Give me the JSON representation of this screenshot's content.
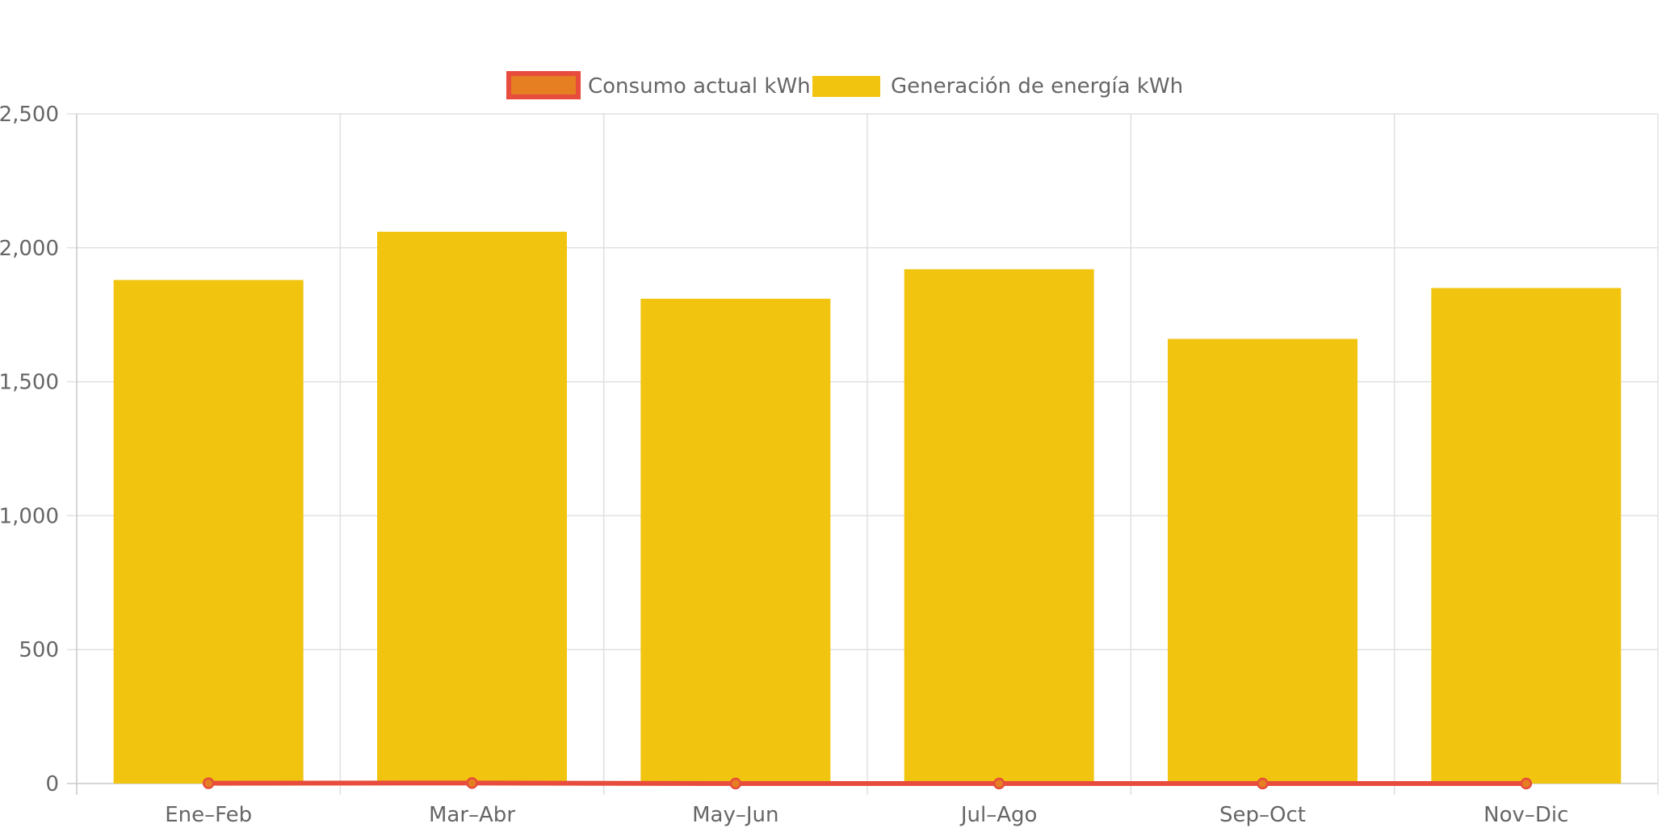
{
  "chart_data": {
    "type": "bar",
    "title": "",
    "xlabel": "",
    "ylabel": "",
    "categories": [
      "Ene–Feb",
      "Mar–Abr",
      "May–Jun",
      "Jul–Ago",
      "Sep–Oct",
      "Nov–Dic"
    ],
    "ylim": [
      0,
      2500
    ],
    "yticks": [
      0,
      500,
      1000,
      1500,
      2000,
      2500
    ],
    "ytick_labels": [
      "0",
      "500",
      "1,000",
      "1,500",
      "2,000",
      "2,500"
    ],
    "grid": true,
    "legend_position": "top-center",
    "series": [
      {
        "name": "Consumo actual kWh",
        "type": "line",
        "values": [
          1,
          2,
          0,
          0,
          0,
          0
        ],
        "color": "#e74c3c",
        "fill_color": "#e67e22"
      },
      {
        "name": "Generación de energía kWh",
        "type": "bar",
        "values": [
          1880,
          2060,
          1810,
          1920,
          1660,
          1850
        ],
        "color": "#f1c40f"
      }
    ]
  }
}
